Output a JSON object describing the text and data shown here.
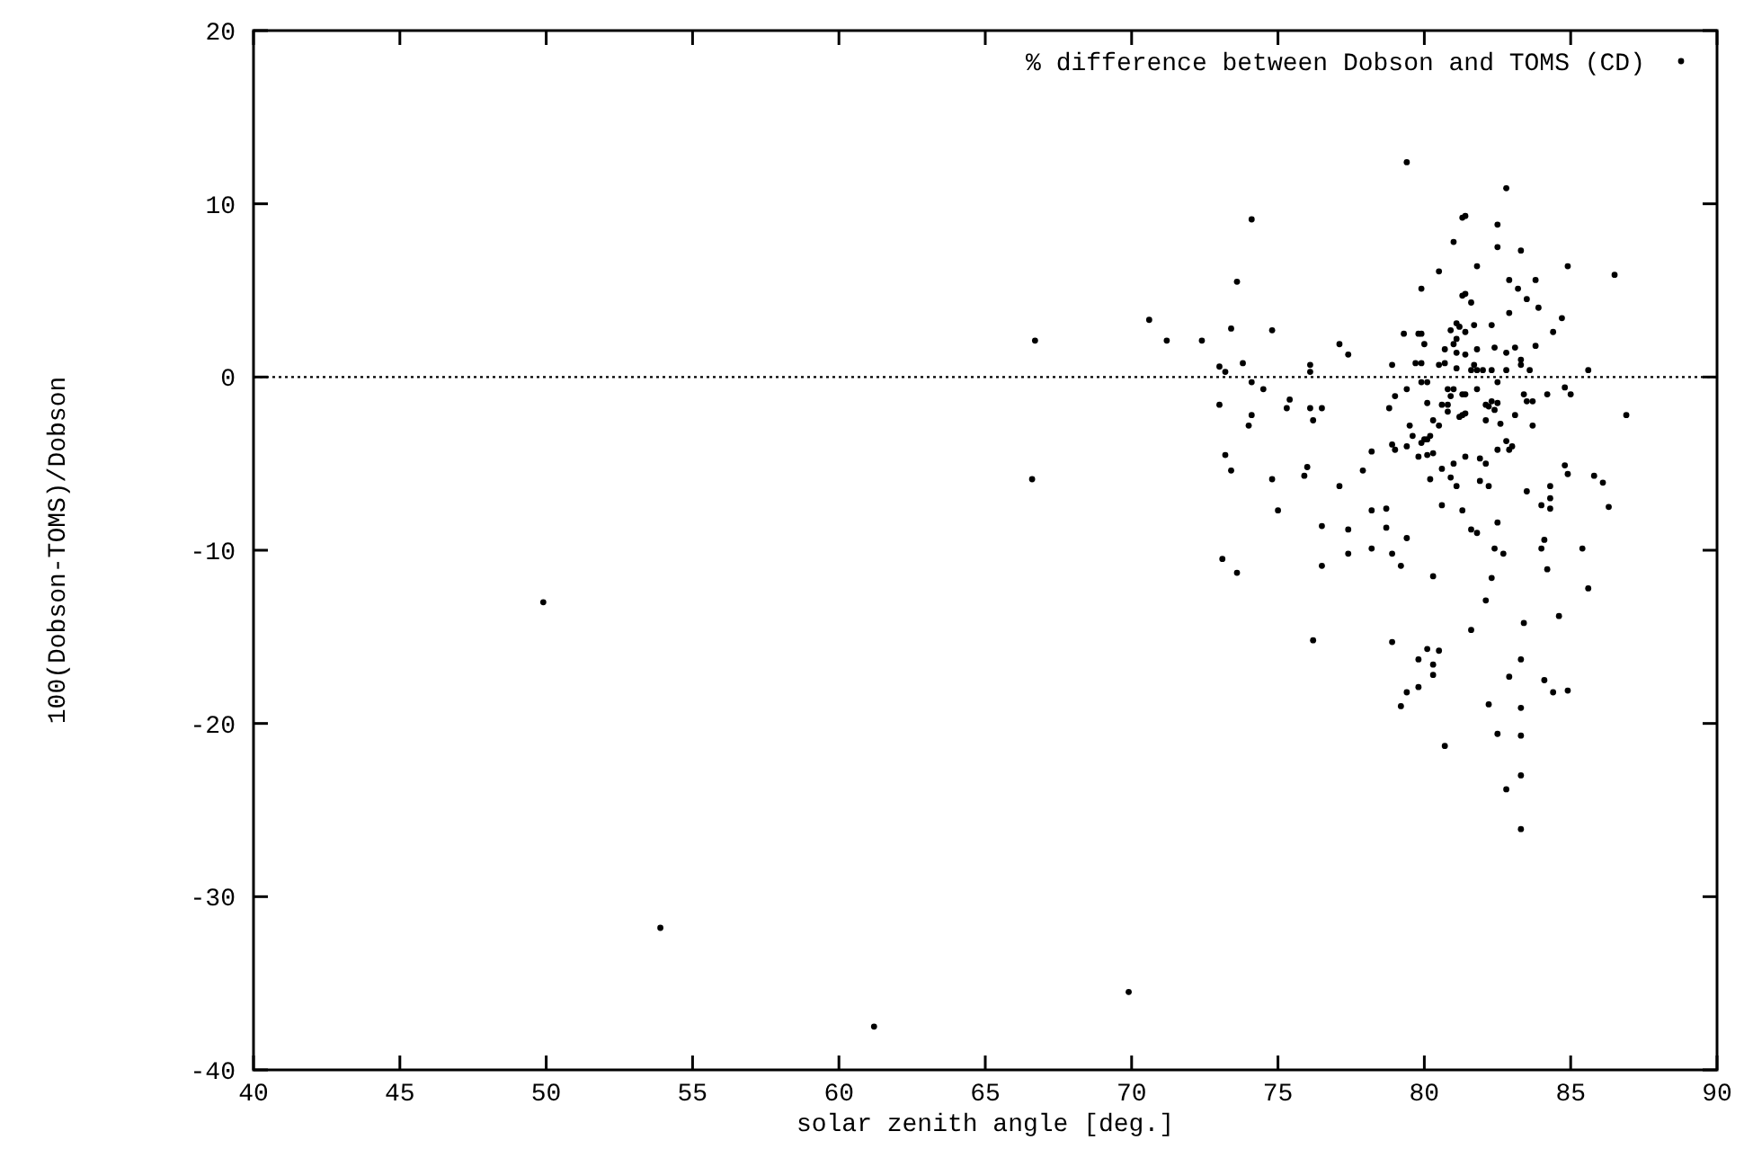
{
  "chart_data": {
    "type": "scatter",
    "xlabel": "solar zenith angle [deg.]",
    "ylabel": "100(Dobson-TOMS)/Dobson",
    "xlim": [
      40,
      90
    ],
    "xticks": [
      40,
      45,
      50,
      55,
      60,
      65,
      70,
      75,
      80,
      85,
      90
    ],
    "ylim": [
      -40,
      20
    ],
    "yticks": [
      -40,
      -30,
      -20,
      -10,
      0,
      10,
      20
    ],
    "grid": false,
    "legend": "top right",
    "marker": "circle",
    "ref_lines": [
      {
        "axis": "y",
        "value": 0,
        "line_style": "dotted",
        "color": "#000000"
      }
    ],
    "series": [
      {
        "name": "% difference between Dobson and TOMS (CD)",
        "color": "#000000",
        "x": [
          66.7,
          66.6,
          70.6,
          71.2,
          72.4,
          49.9,
          53.9,
          61.2,
          69.9,
          79.4,
          82.8,
          74.1,
          81.4,
          81.3,
          82.5,
          81.0,
          82.5,
          83.3,
          73.6,
          80.5,
          81.8,
          84.9,
          86.5,
          79.9,
          82.9,
          83.8,
          83.2,
          81.4,
          81.3,
          81.6,
          83.5,
          83.9,
          82.9,
          84.7,
          73.4,
          74.8,
          81.1,
          81.2,
          81.7,
          82.3,
          80.9,
          81.4,
          79.3,
          79.8,
          79.9,
          84.4,
          77.1,
          77.4,
          80.0,
          81.1,
          81.0,
          80.7,
          82.4,
          83.1,
          83.8,
          81.1,
          81.4,
          81.8,
          82.8,
          83.3,
          83.3,
          73.0,
          73.2,
          73.8,
          76.1,
          76.1,
          78.9,
          79.7,
          79.9,
          80.5,
          80.7,
          81.1,
          81.7,
          81.8,
          81.6,
          82.0,
          82.3,
          82.8,
          83.6,
          85.6,
          74.1,
          79.9,
          80.1,
          82.5,
          74.5,
          79.4,
          80.8,
          81.0,
          81.8,
          83.4,
          84.2,
          84.8,
          85.0,
          79.0,
          80.9,
          81.3,
          81.4,
          83.5,
          83.7,
          73.0,
          75.4,
          75.3,
          76.1,
          76.5,
          78.8,
          80.1,
          80.6,
          80.8,
          80.8,
          82.1,
          82.3,
          82.5,
          82.4,
          82.2,
          81.3,
          81.2,
          81.4,
          83.1,
          74.1,
          74.0,
          76.2,
          80.3,
          82.1,
          82.6,
          80.5,
          79.5,
          83.7,
          86.9,
          79.6,
          80.0,
          80.1,
          79.9,
          80.2,
          82.8,
          78.9,
          79.0,
          79.4,
          83.0,
          82.9,
          82.5,
          78.2,
          73.2,
          79.8,
          80.1,
          80.3,
          81.0,
          81.4,
          81.9,
          82.1,
          73.4,
          76.0,
          75.9,
          77.9,
          80.6,
          84.8,
          84.9,
          85.8,
          86.1,
          74.8,
          80.2,
          80.9,
          81.1,
          81.9,
          82.2,
          77.1,
          84.3,
          83.5,
          84.3,
          84.0,
          84.3,
          86.3,
          80.6,
          81.3,
          75.0,
          78.2,
          78.7,
          76.5,
          77.4,
          78.7,
          81.6,
          81.8,
          82.5,
          79.4,
          84.1,
          84.0,
          82.4,
          82.7,
          85.4,
          78.2,
          77.4,
          78.9,
          73.1,
          73.6,
          76.5,
          79.2,
          80.3,
          82.3,
          84.2,
          85.6,
          82.1,
          84.6,
          83.4,
          81.6,
          76.2,
          78.9,
          80.1,
          80.5,
          79.8,
          83.3,
          80.3,
          80.3,
          82.9,
          84.1,
          79.8,
          79.4,
          79.2,
          84.4,
          84.9,
          82.2,
          83.3,
          82.5,
          83.3,
          80.7,
          83.3,
          82.8,
          83.3
        ],
        "values": [
          2.1,
          -5.9,
          3.3,
          2.1,
          2.1,
          -13.0,
          -31.8,
          -37.5,
          -35.5,
          12.4,
          10.9,
          9.1,
          9.3,
          9.2,
          8.8,
          7.8,
          7.5,
          7.3,
          5.5,
          6.1,
          6.4,
          6.4,
          5.9,
          5.1,
          5.6,
          5.6,
          5.1,
          4.8,
          4.7,
          4.3,
          4.5,
          4.0,
          3.7,
          3.4,
          2.8,
          2.7,
          3.1,
          2.9,
          3.0,
          3.0,
          2.7,
          2.6,
          2.5,
          2.5,
          2.5,
          2.6,
          1.9,
          1.3,
          1.9,
          2.2,
          1.9,
          1.6,
          1.7,
          1.7,
          1.8,
          1.4,
          1.3,
          1.6,
          1.4,
          1.0,
          0.7,
          0.6,
          0.3,
          0.8,
          0.7,
          0.3,
          0.7,
          0.8,
          0.8,
          0.7,
          0.8,
          0.5,
          0.7,
          0.4,
          0.4,
          0.4,
          0.4,
          0.4,
          0.4,
          0.4,
          -0.3,
          -0.3,
          -0.3,
          -0.3,
          -0.7,
          -0.7,
          -0.7,
          -0.7,
          -0.7,
          -1.0,
          -1.0,
          -0.6,
          -1.0,
          -1.1,
          -1.1,
          -1.0,
          -1.0,
          -1.4,
          -1.4,
          -1.6,
          -1.3,
          -1.8,
          -1.8,
          -1.8,
          -1.8,
          -1.5,
          -1.6,
          -1.6,
          -2.0,
          -1.6,
          -1.4,
          -1.5,
          -1.9,
          -1.7,
          -2.2,
          -2.3,
          -2.1,
          -2.2,
          -2.2,
          -2.8,
          -2.5,
          -2.5,
          -2.5,
          -2.7,
          -2.8,
          -2.8,
          -2.8,
          -2.2,
          -3.4,
          -3.6,
          -3.6,
          -3.8,
          -3.4,
          -3.7,
          -3.9,
          -4.2,
          -4.0,
          -4.0,
          -4.2,
          -4.2,
          -4.3,
          -4.5,
          -4.6,
          -4.5,
          -4.4,
          -5.0,
          -4.6,
          -4.7,
          -5.0,
          -5.4,
          -5.2,
          -5.7,
          -5.4,
          -5.3,
          -5.1,
          -5.6,
          -5.7,
          -6.1,
          -5.9,
          -5.9,
          -5.8,
          -6.3,
          -6.0,
          -6.3,
          -6.3,
          -6.3,
          -6.6,
          -7.0,
          -7.4,
          -7.6,
          -7.5,
          -7.4,
          -7.7,
          -7.7,
          -7.7,
          -7.6,
          -8.6,
          -8.8,
          -8.7,
          -8.8,
          -9.0,
          -8.4,
          -9.3,
          -9.4,
          -9.9,
          -9.9,
          -10.2,
          -9.9,
          -9.9,
          -10.2,
          -10.2,
          -10.5,
          -11.3,
          -10.9,
          -10.9,
          -11.5,
          -11.6,
          -11.1,
          -12.2,
          -12.9,
          -13.8,
          -14.2,
          -14.6,
          -15.2,
          -15.3,
          -15.7,
          -15.8,
          -16.3,
          -16.3,
          -16.6,
          -17.2,
          -17.3,
          -17.5,
          -17.9,
          -18.2,
          -19.0,
          -18.2,
          -18.1,
          -18.9,
          -19.1,
          -20.6,
          -20.7,
          -21.3,
          -23.0,
          -23.8,
          -26.1
        ]
      }
    ]
  }
}
